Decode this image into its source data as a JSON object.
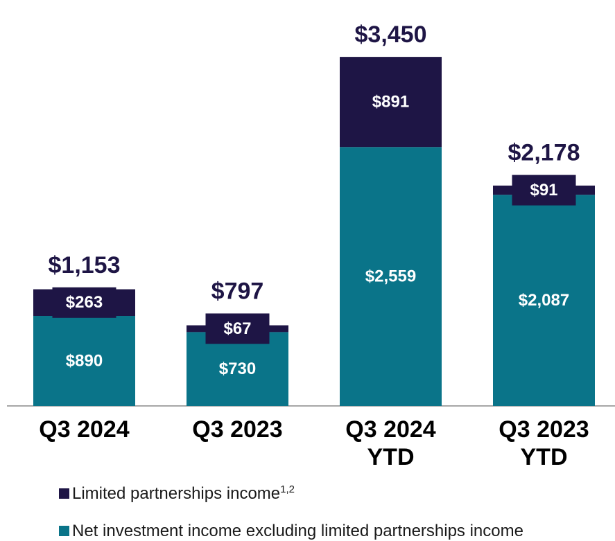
{
  "chart_data": {
    "type": "stacked_bar",
    "categories": [
      "Q3 2024",
      "Q3 2023",
      "Q3 2024 YTD",
      "Q3 2023 YTD"
    ],
    "series": [
      {
        "name": "Net investment income excluding limited partnerships income",
        "color": "#0a7489",
        "values": [
          890,
          730,
          2559,
          2087
        ],
        "value_labels": [
          "$890",
          "$730",
          "$2,559",
          "$2,087"
        ]
      },
      {
        "name": "Limited partnerships income",
        "footnote_refs": "1,2",
        "color": "#1e1545",
        "values": [
          263,
          67,
          891,
          91
        ],
        "value_labels": [
          "$263",
          "$67",
          "$891",
          "$91"
        ]
      }
    ],
    "total_labels": [
      "$1,153",
      "$797",
      "$3,450",
      "$2,178"
    ],
    "ylim": [
      0,
      3800
    ]
  }
}
